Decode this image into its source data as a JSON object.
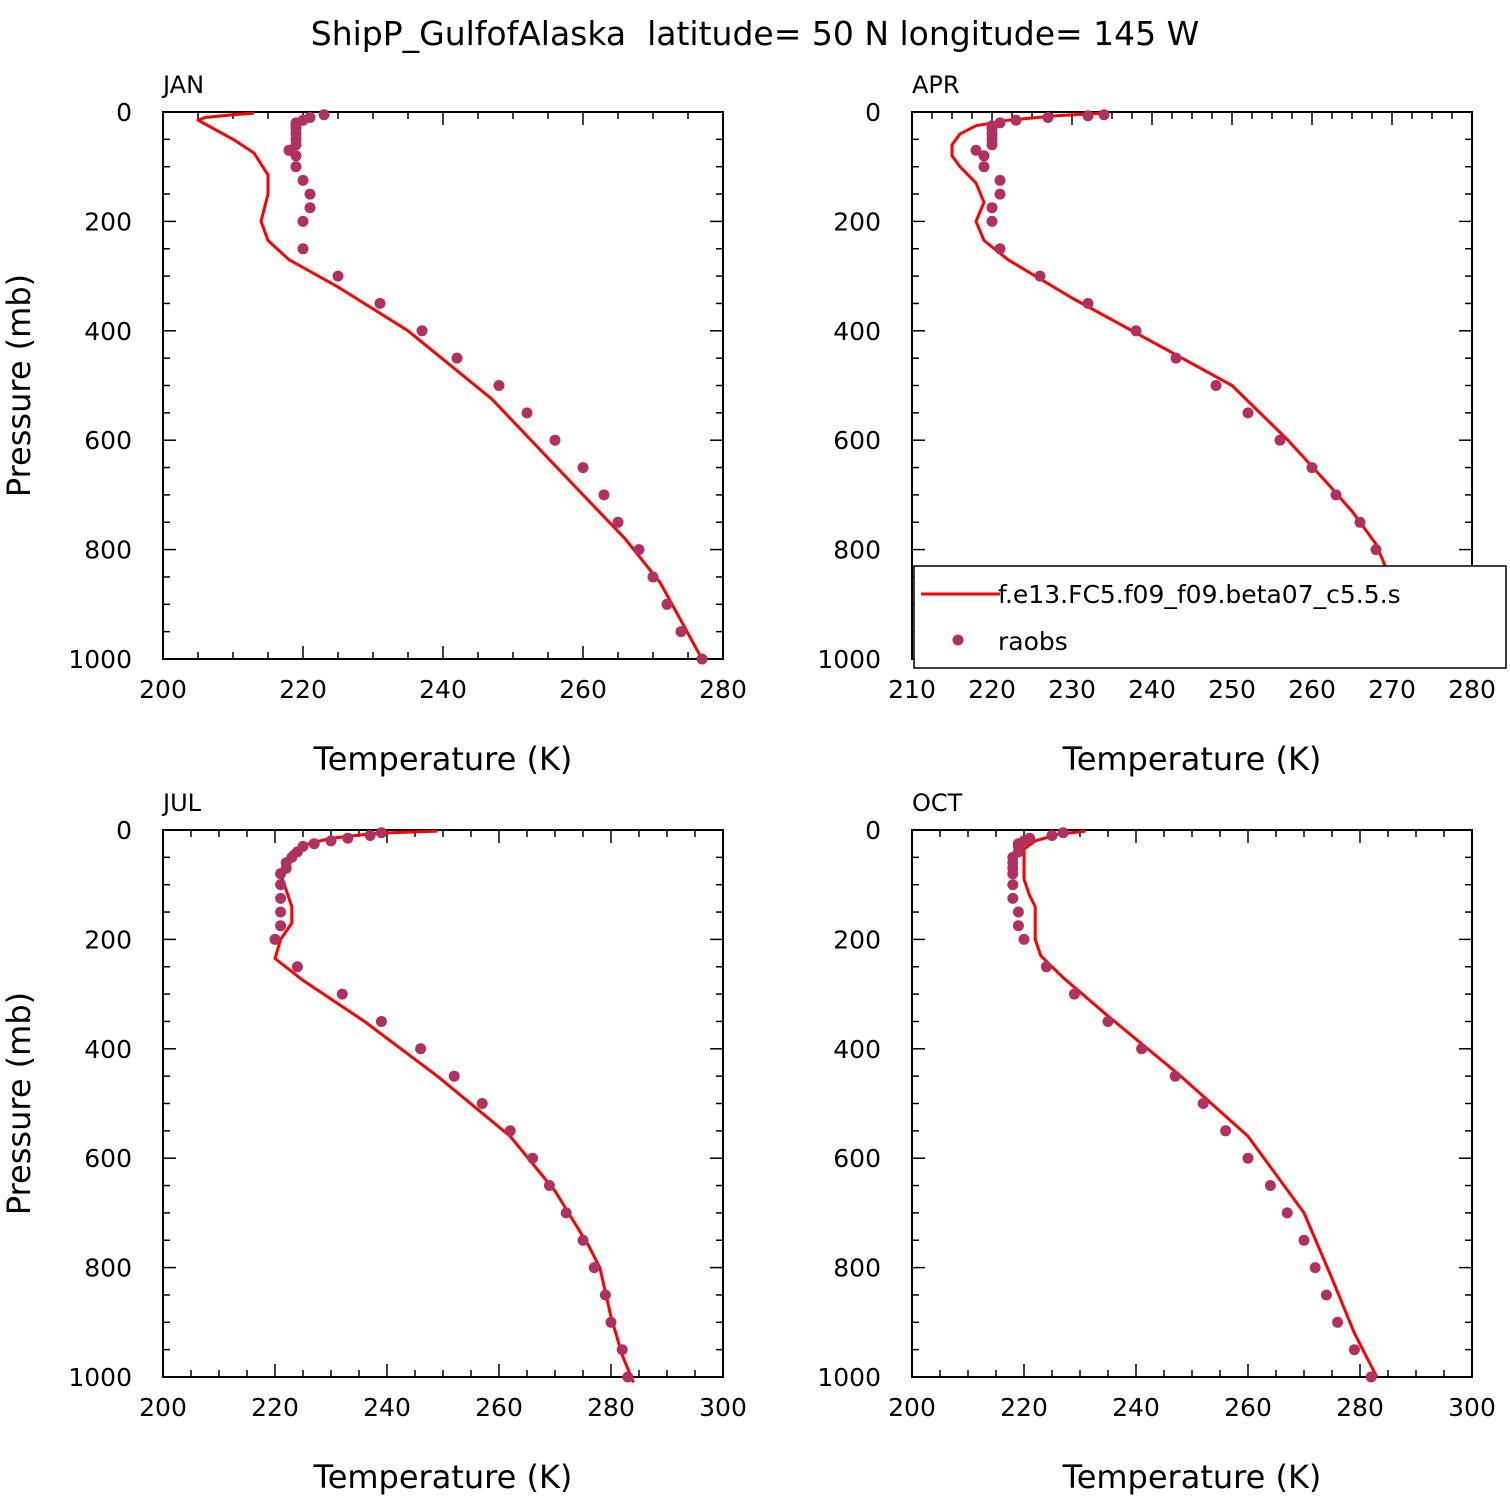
{
  "title": "ShipP_GulfofAlaska  latitude= 50 N longitude= 145 W",
  "colors": {
    "model": "#ff0000",
    "obs": "#b0305f",
    "axis": "#000000"
  },
  "legend": {
    "model_label": "f.e13.FC5.f09_f09.beta07_c5.5.s",
    "obs_label": "raobs"
  },
  "chart_data": [
    {
      "type": "line",
      "panel": "JAN",
      "xlabel": "Temperature (K)",
      "ylabel": "Pressure (mb)",
      "xlim": [
        200,
        280
      ],
      "xticks": [
        200,
        220,
        240,
        260,
        280
      ],
      "ylim": [
        0,
        1000
      ],
      "yticks": [
        0,
        200,
        400,
        600,
        800,
        1000
      ],
      "y_inverted": true,
      "model": [
        [
          213,
          2
        ],
        [
          210,
          5
        ],
        [
          206,
          10
        ],
        [
          205,
          15
        ],
        [
          210,
          50
        ],
        [
          213,
          75
        ],
        [
          215,
          115
        ],
        [
          215,
          150
        ],
        [
          214,
          200
        ],
        [
          215,
          235
        ],
        [
          218,
          270
        ],
        [
          225,
          320
        ],
        [
          235,
          400
        ],
        [
          247,
          525
        ],
        [
          260,
          700
        ],
        [
          266,
          780
        ],
        [
          271,
          860
        ],
        [
          277,
          1000
        ]
      ],
      "obs": [
        [
          223,
          5
        ],
        [
          221,
          10
        ],
        [
          220,
          15
        ],
        [
          219,
          20
        ],
        [
          219,
          25
        ],
        [
          219,
          30
        ],
        [
          219,
          40
        ],
        [
          219,
          50
        ],
        [
          219,
          60
        ],
        [
          218,
          70
        ],
        [
          219,
          80
        ],
        [
          219,
          100
        ],
        [
          220,
          125
        ],
        [
          221,
          150
        ],
        [
          221,
          175
        ],
        [
          220,
          200
        ],
        [
          220,
          250
        ],
        [
          225,
          300
        ],
        [
          231,
          350
        ],
        [
          237,
          400
        ],
        [
          242,
          450
        ],
        [
          248,
          500
        ],
        [
          252,
          550
        ],
        [
          256,
          600
        ],
        [
          260,
          650
        ],
        [
          263,
          700
        ],
        [
          265,
          750
        ],
        [
          268,
          800
        ],
        [
          270,
          850
        ],
        [
          272,
          900
        ],
        [
          274,
          950
        ],
        [
          277,
          1000
        ]
      ]
    },
    {
      "type": "line",
      "panel": "APR",
      "xlabel": "Temperature (K)",
      "ylabel": "",
      "xlim": [
        210,
        280
      ],
      "xticks": [
        210,
        220,
        230,
        240,
        250,
        260,
        270,
        280
      ],
      "ylim": [
        0,
        1000
      ],
      "yticks": [
        0,
        200,
        400,
        600,
        800,
        1000
      ],
      "y_inverted": true,
      "model": [
        [
          234,
          2
        ],
        [
          228,
          7
        ],
        [
          222,
          15
        ],
        [
          218,
          25
        ],
        [
          216,
          40
        ],
        [
          215,
          60
        ],
        [
          215,
          80
        ],
        [
          216,
          100
        ],
        [
          218,
          130
        ],
        [
          219,
          165
        ],
        [
          218,
          200
        ],
        [
          219,
          235
        ],
        [
          222,
          270
        ],
        [
          230,
          340
        ],
        [
          240,
          420
        ],
        [
          250,
          500
        ],
        [
          257,
          600
        ],
        [
          262,
          680
        ],
        [
          265,
          730
        ],
        [
          268,
          790
        ],
        [
          270,
          860
        ],
        [
          272,
          920
        ],
        [
          274,
          960
        ],
        [
          277,
          990
        ],
        [
          279,
          1010
        ]
      ],
      "obs": [
        [
          234,
          5
        ],
        [
          232,
          7
        ],
        [
          227,
          10
        ],
        [
          223,
          15
        ],
        [
          221,
          20
        ],
        [
          220,
          25
        ],
        [
          220,
          30
        ],
        [
          220,
          40
        ],
        [
          220,
          50
        ],
        [
          220,
          60
        ],
        [
          218,
          70
        ],
        [
          219,
          80
        ],
        [
          219,
          100
        ],
        [
          221,
          125
        ],
        [
          221,
          150
        ],
        [
          220,
          175
        ],
        [
          220,
          200
        ],
        [
          221,
          250
        ],
        [
          226,
          300
        ],
        [
          232,
          350
        ],
        [
          238,
          400
        ],
        [
          243,
          450
        ],
        [
          248,
          500
        ],
        [
          252,
          550
        ],
        [
          256,
          600
        ],
        [
          260,
          650
        ],
        [
          263,
          700
        ],
        [
          266,
          750
        ],
        [
          268,
          800
        ],
        [
          270,
          850
        ],
        [
          272,
          900
        ],
        [
          275,
          950
        ],
        [
          277,
          1000
        ]
      ]
    },
    {
      "type": "line",
      "panel": "JUL",
      "xlabel": "Temperature (K)",
      "ylabel": "Pressure (mb)",
      "xlim": [
        200,
        300
      ],
      "xticks": [
        200,
        220,
        240,
        260,
        280,
        300
      ],
      "ylim": [
        0,
        1000
      ],
      "yticks": [
        0,
        200,
        400,
        600,
        800,
        1000
      ],
      "y_inverted": true,
      "model": [
        [
          249,
          2
        ],
        [
          238,
          6
        ],
        [
          230,
          15
        ],
        [
          226,
          25
        ],
        [
          223,
          40
        ],
        [
          222,
          55
        ],
        [
          221,
          80
        ],
        [
          222,
          110
        ],
        [
          223,
          140
        ],
        [
          223,
          170
        ],
        [
          221,
          200
        ],
        [
          220,
          235
        ],
        [
          225,
          275
        ],
        [
          236,
          350
        ],
        [
          249,
          450
        ],
        [
          262,
          560
        ],
        [
          270,
          660
        ],
        [
          276,
          760
        ],
        [
          278,
          800
        ],
        [
          280,
          890
        ],
        [
          282,
          960
        ],
        [
          284,
          1010
        ]
      ],
      "obs": [
        [
          239,
          5
        ],
        [
          237,
          10
        ],
        [
          233,
          15
        ],
        [
          230,
          20
        ],
        [
          227,
          25
        ],
        [
          225,
          30
        ],
        [
          224,
          40
        ],
        [
          223,
          50
        ],
        [
          222,
          60
        ],
        [
          222,
          70
        ],
        [
          221,
          80
        ],
        [
          221,
          100
        ],
        [
          221,
          125
        ],
        [
          221,
          150
        ],
        [
          221,
          175
        ],
        [
          220,
          200
        ],
        [
          224,
          250
        ],
        [
          232,
          300
        ],
        [
          239,
          350
        ],
        [
          246,
          400
        ],
        [
          252,
          450
        ],
        [
          257,
          500
        ],
        [
          262,
          550
        ],
        [
          266,
          600
        ],
        [
          269,
          650
        ],
        [
          272,
          700
        ],
        [
          275,
          750
        ],
        [
          277,
          800
        ],
        [
          279,
          850
        ],
        [
          280,
          900
        ],
        [
          282,
          950
        ],
        [
          283,
          1000
        ]
      ]
    },
    {
      "type": "line",
      "panel": "OCT",
      "xlabel": "Temperature (K)",
      "ylabel": "",
      "xlim": [
        200,
        300
      ],
      "xticks": [
        200,
        220,
        240,
        260,
        280,
        300
      ],
      "ylim": [
        0,
        1000
      ],
      "yticks": [
        0,
        200,
        400,
        600,
        800,
        1000
      ],
      "y_inverted": true,
      "model": [
        [
          231,
          2
        ],
        [
          226,
          8
        ],
        [
          222,
          20
        ],
        [
          220,
          35
        ],
        [
          220,
          60
        ],
        [
          220,
          90
        ],
        [
          221,
          120
        ],
        [
          222,
          140
        ],
        [
          222,
          170
        ],
        [
          222,
          200
        ],
        [
          223,
          230
        ],
        [
          227,
          270
        ],
        [
          235,
          340
        ],
        [
          248,
          450
        ],
        [
          260,
          560
        ],
        [
          270,
          700
        ],
        [
          275,
          820
        ],
        [
          279,
          920
        ],
        [
          283,
          1000
        ]
      ],
      "obs": [
        [
          227,
          5
        ],
        [
          225,
          10
        ],
        [
          221,
          15
        ],
        [
          220,
          20
        ],
        [
          219,
          25
        ],
        [
          219,
          30
        ],
        [
          219,
          40
        ],
        [
          218,
          50
        ],
        [
          218,
          60
        ],
        [
          218,
          70
        ],
        [
          218,
          80
        ],
        [
          218,
          100
        ],
        [
          218,
          125
        ],
        [
          219,
          150
        ],
        [
          219,
          175
        ],
        [
          220,
          200
        ],
        [
          224,
          250
        ],
        [
          229,
          300
        ],
        [
          235,
          350
        ],
        [
          241,
          400
        ],
        [
          247,
          450
        ],
        [
          252,
          500
        ],
        [
          256,
          550
        ],
        [
          260,
          600
        ],
        [
          264,
          650
        ],
        [
          267,
          700
        ],
        [
          270,
          750
        ],
        [
          272,
          800
        ],
        [
          274,
          850
        ],
        [
          276,
          900
        ],
        [
          279,
          950
        ],
        [
          282,
          1000
        ]
      ]
    }
  ]
}
